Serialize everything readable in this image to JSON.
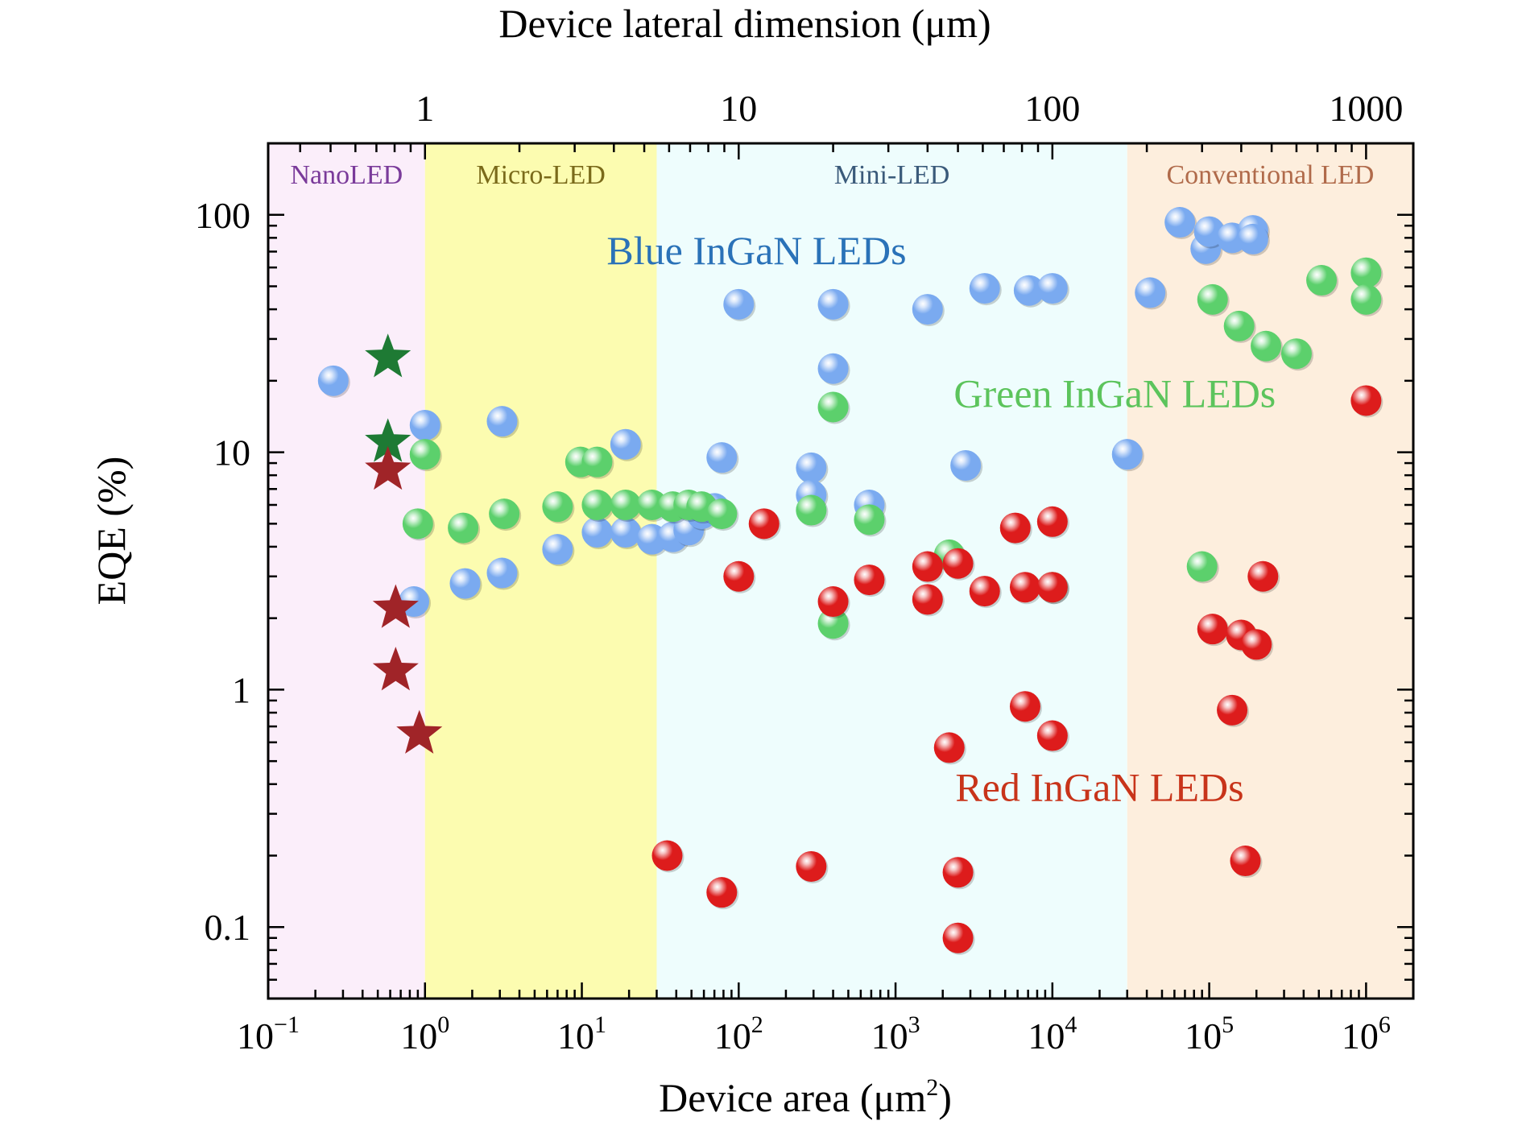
{
  "chart_data": {
    "type": "scatter",
    "title": "",
    "xlabel": "Device area (μm²)",
    "xlabel_main": "Device area (μm",
    "xlabel_sup": "2",
    "xlabel_close": ")",
    "x2label": "Device lateral dimension (μm)",
    "ylabel": "EQE (%)",
    "x_scale": "log",
    "y_scale": "log",
    "xlim": [
      0.1,
      2000000
    ],
    "ylim": [
      0.05,
      200
    ],
    "grid": false,
    "x_ticks": [
      {
        "value": 0.1,
        "base": "10",
        "exp": "−1"
      },
      {
        "value": 1,
        "base": "10",
        "exp": "0"
      },
      {
        "value": 10,
        "base": "10",
        "exp": "1"
      },
      {
        "value": 100,
        "base": "10",
        "exp": "2"
      },
      {
        "value": 1000,
        "base": "10",
        "exp": "3"
      },
      {
        "value": 10000,
        "base": "10",
        "exp": "4"
      },
      {
        "value": 100000,
        "base": "10",
        "exp": "5"
      },
      {
        "value": 1000000,
        "base": "10",
        "exp": "6"
      }
    ],
    "y_ticks": [
      {
        "value": 0.1,
        "label": "0.1"
      },
      {
        "value": 1,
        "label": "1"
      },
      {
        "value": 10,
        "label": "10"
      },
      {
        "value": 100,
        "label": "100"
      }
    ],
    "x2_ticks": [
      {
        "value": 1,
        "label": "1"
      },
      {
        "value": 10,
        "label": "10"
      },
      {
        "value": 100,
        "label": "100"
      },
      {
        "value": 1000,
        "label": "1000"
      }
    ],
    "regions": [
      {
        "label": "NanoLED",
        "x_from": 0.1,
        "x_to": 1,
        "fill": "#fbeefa",
        "label_color": "#7a3a9a"
      },
      {
        "label": "Micro-LED",
        "x_from": 1,
        "x_to": 30,
        "fill": "#fcfcb0",
        "label_color": "#7a6a1a"
      },
      {
        "label": "Mini-LED",
        "x_from": 30,
        "x_to": 30000,
        "fill": "#eefdfd",
        "label_color": "#3a5a7a"
      },
      {
        "label": "Conventional LED",
        "x_from": 30000,
        "x_to": 2000000,
        "fill": "#fdeedd",
        "label_color": "#b06a4a"
      }
    ],
    "annotations": [
      {
        "text": "Blue InGaN LEDs",
        "x": 130,
        "y": 62,
        "color": "#2a72b8"
      },
      {
        "text": "Green InGaN LEDs",
        "x": 25000,
        "y": 15.5,
        "color": "#5cc45c"
      },
      {
        "text": "Red InGaN LEDs",
        "x": 20000,
        "y": 0.34,
        "color": "#c8341a"
      }
    ],
    "series": [
      {
        "color": "#7aaaf0",
        "marker": "sphere",
        "points": [
          [
            0.26,
            20
          ],
          [
            0.85,
            2.35
          ],
          [
            1.0,
            13
          ],
          [
            1.8,
            2.8
          ],
          [
            3.1,
            13.5
          ],
          [
            3.1,
            3.1
          ],
          [
            7.0,
            3.9
          ],
          [
            12.5,
            4.6
          ],
          [
            19,
            10.8
          ],
          [
            19,
            4.6
          ],
          [
            28,
            4.3
          ],
          [
            38,
            4.4
          ],
          [
            48,
            4.7
          ],
          [
            58,
            5.5
          ],
          [
            70,
            5.8
          ],
          [
            78,
            9.5
          ],
          [
            100,
            42
          ],
          [
            290,
            8.6
          ],
          [
            290,
            6.6
          ],
          [
            400,
            42
          ],
          [
            400,
            22.5
          ],
          [
            680,
            6.0
          ],
          [
            1600,
            40
          ],
          [
            2800,
            8.8
          ],
          [
            3700,
            49
          ],
          [
            7100,
            48
          ],
          [
            10000,
            49
          ],
          [
            30000,
            9.8
          ],
          [
            42000,
            47
          ],
          [
            65000,
            93
          ],
          [
            95000,
            72
          ],
          [
            100000,
            85
          ],
          [
            140000,
            80
          ],
          [
            190000,
            86
          ],
          [
            190000,
            79
          ]
        ]
      },
      {
        "color": "#5cd06c",
        "marker": "sphere",
        "points": [
          [
            0.9,
            5.0
          ],
          [
            1.0,
            9.8
          ],
          [
            1.75,
            4.8
          ],
          [
            3.2,
            5.5
          ],
          [
            7.0,
            5.9
          ],
          [
            9.8,
            9.1
          ],
          [
            12.5,
            9.1
          ],
          [
            12.5,
            6.0
          ],
          [
            19,
            6.0
          ],
          [
            28,
            6.0
          ],
          [
            38,
            5.9
          ],
          [
            48,
            6.0
          ],
          [
            58,
            5.9
          ],
          [
            78,
            5.5
          ],
          [
            290,
            5.7
          ],
          [
            400,
            15.5
          ],
          [
            400,
            1.9
          ],
          [
            680,
            5.2
          ],
          [
            2200,
            3.7
          ],
          [
            10000,
            2.7
          ],
          [
            90000,
            3.3
          ],
          [
            105000,
            44
          ],
          [
            155000,
            34
          ],
          [
            230000,
            28
          ],
          [
            360000,
            26
          ],
          [
            520000,
            53
          ],
          [
            1000000,
            57
          ],
          [
            1000000,
            44
          ]
        ]
      },
      {
        "color": "#dd1c1c",
        "marker": "sphere",
        "points": [
          [
            35,
            0.2
          ],
          [
            78,
            0.14
          ],
          [
            100,
            3.0
          ],
          [
            145,
            5.0
          ],
          [
            290,
            0.18
          ],
          [
            400,
            2.35
          ],
          [
            680,
            2.9
          ],
          [
            1600,
            3.3
          ],
          [
            1600,
            2.4
          ],
          [
            2200,
            0.57
          ],
          [
            2500,
            3.4
          ],
          [
            2500,
            0.17
          ],
          [
            2500,
            0.09
          ],
          [
            3700,
            2.6
          ],
          [
            5800,
            4.8
          ],
          [
            6700,
            2.7
          ],
          [
            6700,
            0.85
          ],
          [
            10000,
            0.64
          ],
          [
            10000,
            5.1
          ],
          [
            10000,
            2.7
          ],
          [
            105000,
            1.8
          ],
          [
            140000,
            0.82
          ],
          [
            160000,
            1.7
          ],
          [
            170000,
            0.19
          ],
          [
            200000,
            1.55
          ],
          [
            220000,
            3.0
          ],
          [
            1000000,
            16.5
          ]
        ]
      },
      {
        "color": "#1e7a34",
        "marker": "star",
        "points": [
          [
            0.58,
            25
          ],
          [
            0.58,
            11
          ]
        ]
      },
      {
        "color": "#a02428",
        "marker": "star",
        "points": [
          [
            0.58,
            8.4
          ],
          [
            0.65,
            2.2
          ],
          [
            0.65,
            1.2
          ],
          [
            0.92,
            0.65
          ]
        ]
      }
    ]
  }
}
